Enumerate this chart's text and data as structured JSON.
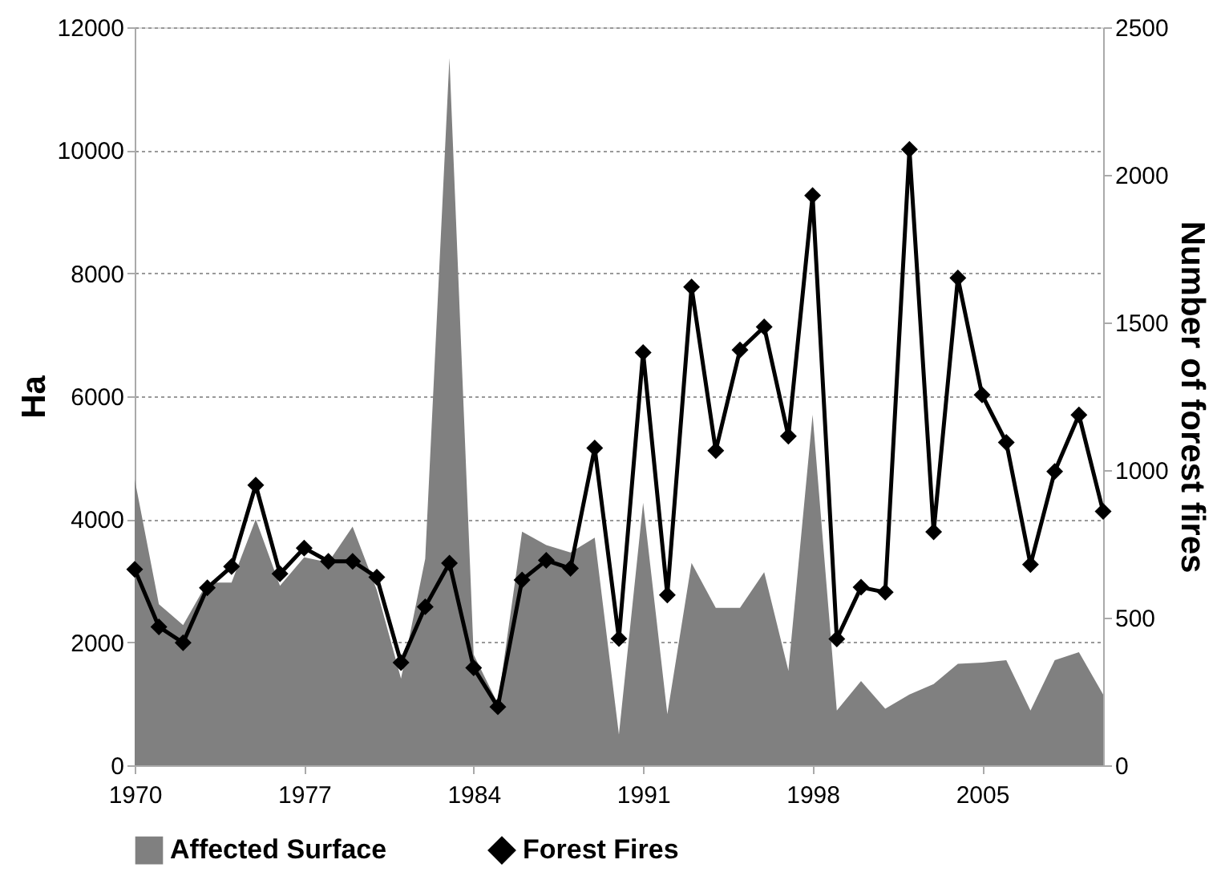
{
  "chart_data": {
    "type": "area",
    "x": [
      1970,
      1971,
      1972,
      1973,
      1974,
      1975,
      1976,
      1977,
      1978,
      1979,
      1980,
      1981,
      1982,
      1983,
      1984,
      1985,
      1986,
      1987,
      1988,
      1989,
      1990,
      1991,
      1992,
      1993,
      1994,
      1995,
      1996,
      1997,
      1998,
      1999,
      2000,
      2001,
      2002,
      2003,
      2004,
      2005,
      2006,
      2007,
      2008,
      2009,
      2010
    ],
    "series": [
      {
        "name": "Affected Surface",
        "color": "#808080",
        "values": [
          4650,
          2620,
          2280,
          2970,
          2970,
          4000,
          2920,
          3380,
          3300,
          3880,
          2850,
          1410,
          3360,
          11500,
          1800,
          1000,
          3800,
          3580,
          3460,
          3700,
          500,
          4270,
          830,
          3290,
          2560,
          2560,
          3140,
          1540,
          5700,
          890,
          1370,
          920,
          1150,
          1320,
          1650,
          1670,
          1710,
          890,
          1710,
          1840,
          1150
        ]
      },
      {
        "name": "Forest Fires",
        "type": "line",
        "axis": "y2",
        "color": "#000000",
        "marker": "diamond",
        "values": [
          664,
          469,
          415,
          601,
          673,
          949,
          649,
          736,
          691,
          691,
          637,
          348,
          537,
          685,
          330,
          198,
          628,
          694,
          667,
          1075,
          429,
          1398,
          577,
          1620,
          1066,
          1407,
          1485,
          1115,
          1930,
          428,
          603,
          586,
          2086,
          791,
          1651,
          1255,
          1094,
          680,
          995,
          1187,
          860
        ]
      }
    ],
    "xlim": [
      1970,
      2010
    ],
    "xticks": [
      1970,
      1977,
      1984,
      1991,
      1998,
      2005
    ],
    "ylim": [
      0,
      12000
    ],
    "yticks": [
      0,
      2000,
      4000,
      6000,
      8000,
      10000,
      12000
    ],
    "y2lim": [
      0,
      2500
    ],
    "y2ticks": [
      0,
      500,
      1000,
      1500,
      2000,
      2500
    ],
    "ylabel": "Ha",
    "y2label": "Number of forest fires",
    "grid": "y",
    "legend": "bottom"
  }
}
